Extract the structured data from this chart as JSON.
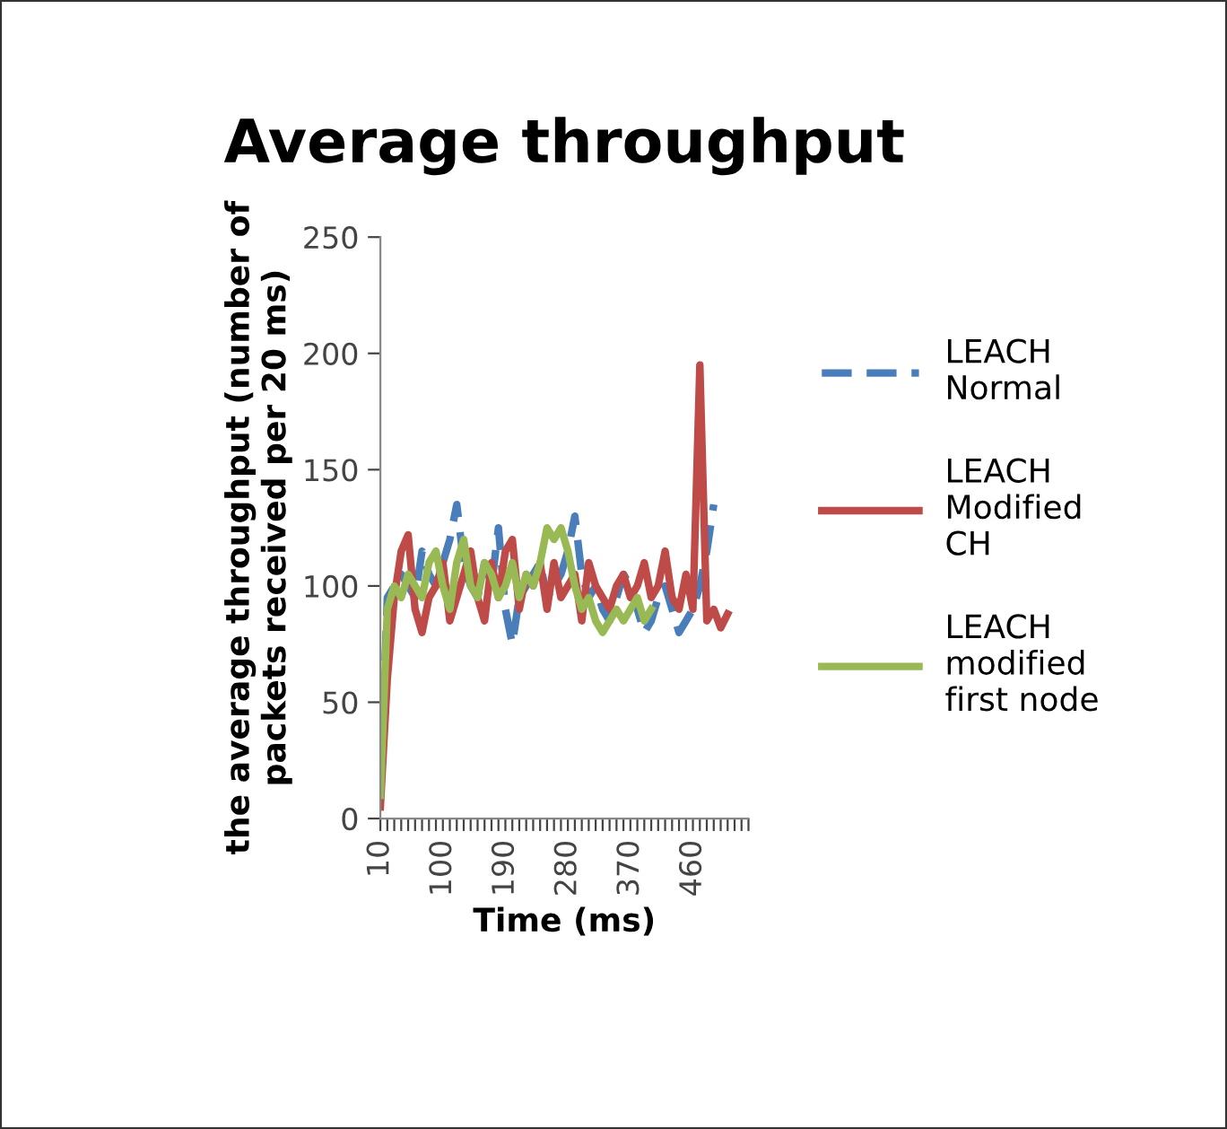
{
  "chart_data": {
    "type": "line",
    "title": "Average throughput",
    "xlabel": "Time (ms)",
    "ylabel": "the average throughput (number of\npackets received per 20 ms)",
    "categories": [
      "10",
      null,
      null,
      null,
      null,
      null,
      null,
      null,
      null,
      "100",
      null,
      null,
      null,
      null,
      null,
      null,
      null,
      null,
      "190",
      null,
      null,
      null,
      null,
      null,
      null,
      null,
      null,
      "280",
      null,
      null,
      null,
      null,
      null,
      null,
      null,
      null,
      "370",
      null,
      null,
      null,
      null,
      null,
      null,
      null,
      null,
      "460",
      null,
      null,
      null,
      null,
      null,
      null,
      null,
      null
    ],
    "ylim": [
      0,
      250
    ],
    "yticks": [
      0,
      50,
      100,
      150,
      200,
      250
    ],
    "grid": false,
    "legend": "right",
    "marker": "none",
    "series": [
      {
        "name": "LEACH\nNormal",
        "color": "#4a7ebb",
        "line_style": "dashed",
        "values": [
          10,
          95,
          100,
          105,
          100,
          95,
          115,
          105,
          100,
          110,
          120,
          135,
          110,
          100,
          95,
          110,
          100,
          125,
          90,
          75,
          95,
          100,
          105,
          110,
          95,
          100,
          105,
          115,
          130,
          105,
          95,
          100,
          90,
          85,
          95,
          105,
          100,
          90,
          80,
          85,
          95,
          100,
          90,
          80,
          85,
          90,
          100,
          115,
          135,
          null,
          null,
          null,
          null,
          null
        ]
      },
      {
        "name": "LEACH\nModified\nCH",
        "color": "#be4b48",
        "line_style": "solid",
        "values": [
          5,
          60,
          95,
          115,
          122,
          90,
          80,
          95,
          100,
          110,
          85,
          95,
          105,
          115,
          95,
          85,
          110,
          95,
          115,
          120,
          90,
          105,
          100,
          110,
          90,
          110,
          95,
          100,
          105,
          85,
          110,
          100,
          95,
          90,
          100,
          105,
          95,
          100,
          110,
          95,
          100,
          115,
          95,
          90,
          105,
          90,
          195,
          85,
          90,
          82,
          88,
          null,
          null,
          null
        ]
      },
      {
        "name": "LEACH\nmodified\nfirst node",
        "color": "#98b954",
        "line_style": "solid",
        "values": [
          10,
          90,
          100,
          95,
          105,
          100,
          95,
          110,
          115,
          100,
          90,
          110,
          120,
          100,
          95,
          110,
          105,
          95,
          100,
          110,
          95,
          105,
          100,
          110,
          125,
          120,
          125,
          115,
          100,
          90,
          95,
          85,
          80,
          85,
          90,
          85,
          90,
          95,
          85,
          90,
          null,
          null,
          null,
          null,
          null,
          null,
          null,
          null,
          null,
          null,
          null,
          null,
          null,
          null
        ]
      }
    ]
  }
}
